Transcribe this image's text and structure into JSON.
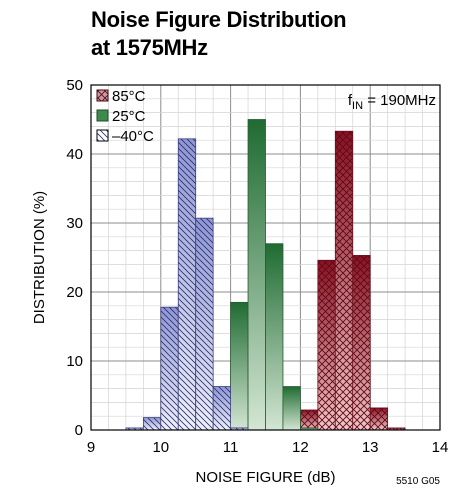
{
  "title_line1": "Noise Figure Distribution",
  "title_line2": "at 1575MHz",
  "chart_data": {
    "type": "bar",
    "title": "Noise Figure Distribution at 1575MHz",
    "xlabel": "NOISE FIGURE (dB)",
    "ylabel": "DISTRIBUTION (%)",
    "xlim": [
      9,
      14
    ],
    "ylim": [
      0,
      50
    ],
    "xticks": [
      9,
      10,
      11,
      12,
      13,
      14
    ],
    "yticks": [
      0,
      10,
      20,
      30,
      40,
      50
    ],
    "bin_width": 0.25,
    "grid": true,
    "legend_position": "top-left",
    "annotation": {
      "base": "f",
      "sub": "IN",
      "rest": " = 190MHz"
    },
    "footnote": "5510 G05",
    "series": [
      {
        "name": "85°C",
        "color": "#a0182a",
        "pattern": "crosshatch",
        "bins": [
          {
            "x": 12.0,
            "value": 0.3
          },
          {
            "x": 12.25,
            "value": 2.9
          },
          {
            "x": 12.5,
            "value": 24.6
          },
          {
            "x": 12.75,
            "value": 43.3
          },
          {
            "x": 13.0,
            "value": 25.3
          },
          {
            "x": 13.25,
            "value": 3.2
          },
          {
            "x": 13.5,
            "value": 0.3
          }
        ]
      },
      {
        "name": "25°C",
        "color": "#2e7d3e",
        "pattern": "solid",
        "bins": [
          {
            "x": 10.75,
            "value": 0.3
          },
          {
            "x": 11.0,
            "value": 2.1
          },
          {
            "x": 11.25,
            "value": 18.5
          },
          {
            "x": 11.5,
            "value": 45.0
          },
          {
            "x": 11.75,
            "value": 27.0
          },
          {
            "x": 12.0,
            "value": 6.3
          },
          {
            "x": 12.25,
            "value": 0.3
          }
        ]
      },
      {
        "name": "–40°C",
        "color": "#5a62b0",
        "pattern": "diagonal",
        "bins": [
          {
            "x": 9.75,
            "value": 0.3
          },
          {
            "x": 10.0,
            "value": 1.8
          },
          {
            "x": 10.25,
            "value": 17.8
          },
          {
            "x": 10.5,
            "value": 42.2
          },
          {
            "x": 10.75,
            "value": 30.7
          },
          {
            "x": 11.0,
            "value": 6.3
          },
          {
            "x": 11.25,
            "value": 0.3
          }
        ]
      }
    ]
  }
}
